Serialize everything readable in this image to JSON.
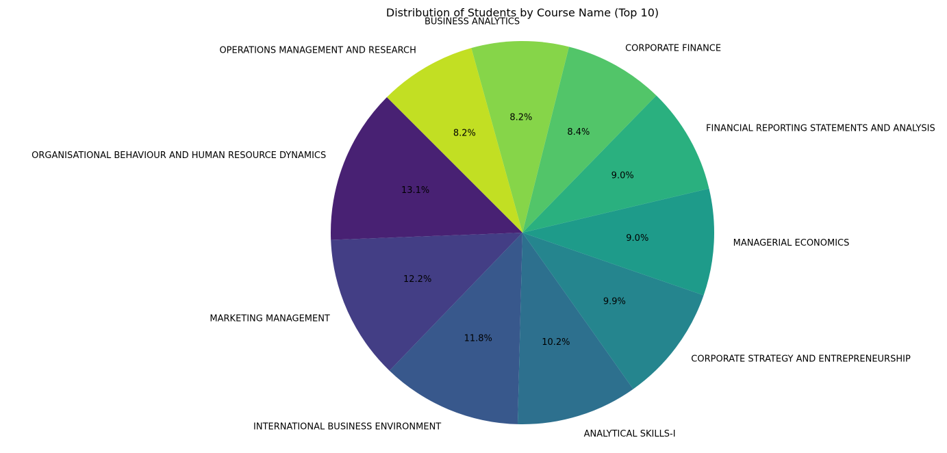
{
  "chart_data": {
    "type": "pie",
    "title": "Distribution of Students by Course Name (Top 10)",
    "start_angle": 135,
    "direction": "counterclockwise",
    "slices": [
      {
        "label": "ORGANISATIONAL BEHAVIOUR AND HUMAN RESOURCE DYNAMICS",
        "value": 13.1,
        "pct_label": "13.1%",
        "color": "#482173"
      },
      {
        "label": "MARKETING MANAGEMENT",
        "value": 12.2,
        "pct_label": "12.2%",
        "color": "#433e85"
      },
      {
        "label": "INTERNATIONAL BUSINESS ENVIRONMENT",
        "value": 11.8,
        "pct_label": "11.8%",
        "color": "#38588c"
      },
      {
        "label": "ANALYTICAL SKILLS-I",
        "value": 10.2,
        "pct_label": "10.2%",
        "color": "#2d708e"
      },
      {
        "label": "CORPORATE STRATEGY AND ENTREPRENEURSHIP",
        "value": 9.9,
        "pct_label": "9.9%",
        "color": "#25858e"
      },
      {
        "label": "MANAGERIAL ECONOMICS",
        "value": 9.0,
        "pct_label": "9.0%",
        "color": "#1e9b8a"
      },
      {
        "label": "FINANCIAL REPORTING STATEMENTS AND ANALYSIS",
        "value": 9.0,
        "pct_label": "9.0%",
        "color": "#2ab07f"
      },
      {
        "label": "CORPORATE FINANCE",
        "value": 8.4,
        "pct_label": "8.4%",
        "color": "#52c569"
      },
      {
        "label": "BUSINESS ANALYTICS",
        "value": 8.2,
        "pct_label": "8.2%",
        "color": "#86d549"
      },
      {
        "label": "OPERATIONS MANAGEMENT AND RESEARCH",
        "value": 8.2,
        "pct_label": "8.2%",
        "color": "#c2df23"
      }
    ]
  }
}
